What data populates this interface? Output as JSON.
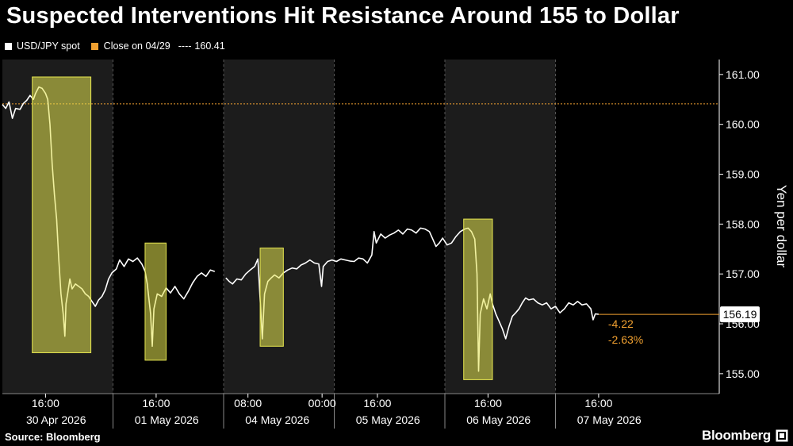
{
  "title": "Suspected Interventions Hit Resistance Around 155 to Dollar",
  "source": "Source: Bloomberg",
  "brand": "Bloomberg",
  "colors": {
    "background": "#000000",
    "shade": "#1c1c1c",
    "series": "#ffffff",
    "close_line": "#f0a030",
    "highlight": "#e6e650",
    "annotation": "#f0a030"
  },
  "icons": {
    "brand": "bloomberg-terminal-icon"
  },
  "chart_data": {
    "type": "line",
    "ylabel": "Yen per dollar",
    "ylim": [
      154.6,
      161.3
    ],
    "y_ticks": [
      "155.00",
      "156.00",
      "157.00",
      "158.00",
      "159.00",
      "160.00",
      "161.00"
    ],
    "grid": false,
    "legend_placement": "top-left",
    "legend": {
      "series_label": "USD/JPY spot",
      "close_label": "Close on 04/29",
      "close_dash": "----",
      "close_value": "160.41"
    },
    "close_reference": 160.41,
    "last_value": "156.19",
    "last_numeric": 156.19,
    "change_abs": "-4.22",
    "change_pct": "-2.63%",
    "x_ticks": [
      {
        "label": "16:00",
        "t": 0.39
      },
      {
        "label": "16:00",
        "t": 1.39
      },
      {
        "label": "08:00",
        "t": 2.22
      },
      {
        "label": "00:00",
        "t": 2.89
      },
      {
        "label": "16:00",
        "t": 3.39
      },
      {
        "label": "16:00",
        "t": 4.39
      },
      {
        "label": "16:00",
        "t": 5.39
      }
    ],
    "days": [
      {
        "label": "30 Apr 2026",
        "start": 0.0,
        "end": 1.0,
        "shaded": true
      },
      {
        "label": "01 May 2026",
        "start": 1.0,
        "end": 2.0,
        "shaded": false
      },
      {
        "label": "04 May 2026",
        "start": 2.0,
        "end": 3.0,
        "shaded": true
      },
      {
        "label": "05 May 2026",
        "start": 3.0,
        "end": 4.0,
        "shaded": false
      },
      {
        "label": "06 May 2026",
        "start": 4.0,
        "end": 5.0,
        "shaded": true
      },
      {
        "label": "07 May 2026",
        "start": 5.0,
        "end": 6.0,
        "shaded": false
      }
    ],
    "intervention_windows": [
      {
        "t0": 0.27,
        "t1": 0.8,
        "ymin": 155.42,
        "ymax": 160.95
      },
      {
        "t0": 1.29,
        "t1": 1.48,
        "ymin": 155.27,
        "ymax": 157.62
      },
      {
        "t0": 2.33,
        "t1": 2.54,
        "ymin": 155.55,
        "ymax": 157.52
      },
      {
        "t0": 4.17,
        "t1": 4.43,
        "ymin": 154.88,
        "ymax": 158.1
      }
    ],
    "series": [
      {
        "name": "USD/JPY spot",
        "segments": [
          [
            [
              0.0,
              160.4
            ],
            [
              0.03,
              160.32
            ],
            [
              0.06,
              160.45
            ],
            [
              0.09,
              160.12
            ],
            [
              0.12,
              160.32
            ],
            [
              0.16,
              160.3
            ],
            [
              0.19,
              160.42
            ],
            [
              0.22,
              160.48
            ],
            [
              0.25,
              160.58
            ],
            [
              0.28,
              160.5
            ],
            [
              0.3,
              160.62
            ],
            [
              0.33,
              160.75
            ],
            [
              0.36,
              160.72
            ],
            [
              0.39,
              160.62
            ],
            [
              0.41,
              160.5
            ],
            [
              0.43,
              160.0
            ],
            [
              0.45,
              159.2
            ],
            [
              0.47,
              158.6
            ],
            [
              0.49,
              158.1
            ],
            [
              0.51,
              157.3
            ],
            [
              0.53,
              156.6
            ],
            [
              0.55,
              156.2
            ],
            [
              0.565,
              155.75
            ],
            [
              0.575,
              156.4
            ],
            [
              0.59,
              156.6
            ],
            [
              0.61,
              156.9
            ],
            [
              0.63,
              156.7
            ],
            [
              0.66,
              156.8
            ],
            [
              0.69,
              156.75
            ],
            [
              0.72,
              156.7
            ],
            [
              0.75,
              156.6
            ],
            [
              0.78,
              156.55
            ],
            [
              0.81,
              156.45
            ],
            [
              0.84,
              156.35
            ],
            [
              0.87,
              156.48
            ],
            [
              0.9,
              156.55
            ],
            [
              0.93,
              156.68
            ],
            [
              0.96,
              156.9
            ],
            [
              0.99,
              157.02
            ],
            [
              1.03,
              157.1
            ],
            [
              1.06,
              157.28
            ],
            [
              1.1,
              157.15
            ],
            [
              1.14,
              157.3
            ],
            [
              1.18,
              157.25
            ],
            [
              1.22,
              157.32
            ],
            [
              1.26,
              157.2
            ],
            [
              1.29,
              157.05
            ],
            [
              1.31,
              156.8
            ],
            [
              1.34,
              156.2
            ],
            [
              1.355,
              155.55
            ],
            [
              1.37,
              156.3
            ],
            [
              1.4,
              156.6
            ],
            [
              1.44,
              156.55
            ],
            [
              1.48,
              156.72
            ],
            [
              1.52,
              156.62
            ],
            [
              1.56,
              156.75
            ],
            [
              1.6,
              156.6
            ],
            [
              1.64,
              156.5
            ],
            [
              1.68,
              156.65
            ],
            [
              1.72,
              156.82
            ],
            [
              1.76,
              156.95
            ],
            [
              1.8,
              157.02
            ],
            [
              1.84,
              156.95
            ],
            [
              1.88,
              157.08
            ],
            [
              1.92,
              157.05
            ]
          ],
          [
            [
              2.02,
              156.92
            ],
            [
              2.05,
              156.85
            ],
            [
              2.08,
              156.8
            ],
            [
              2.12,
              156.9
            ],
            [
              2.16,
              156.88
            ],
            [
              2.2,
              157.0
            ],
            [
              2.24,
              157.08
            ],
            [
              2.28,
              157.15
            ],
            [
              2.31,
              157.3
            ],
            [
              2.335,
              156.3
            ],
            [
              2.35,
              155.7
            ],
            [
              2.37,
              156.6
            ],
            [
              2.4,
              156.85
            ],
            [
              2.43,
              156.92
            ],
            [
              2.46,
              156.98
            ],
            [
              2.5,
              156.92
            ],
            [
              2.54,
              157.02
            ],
            [
              2.58,
              157.08
            ],
            [
              2.62,
              157.12
            ],
            [
              2.66,
              157.1
            ],
            [
              2.7,
              157.18
            ],
            [
              2.74,
              157.22
            ],
            [
              2.78,
              157.28
            ],
            [
              2.82,
              157.22
            ],
            [
              2.86,
              157.2
            ],
            [
              2.885,
              156.75
            ],
            [
              2.9,
              157.15
            ],
            [
              2.94,
              157.25
            ],
            [
              2.98,
              157.28
            ],
            [
              3.02,
              157.25
            ],
            [
              3.06,
              157.3
            ],
            [
              3.1,
              157.28
            ],
            [
              3.14,
              157.26
            ],
            [
              3.18,
              157.25
            ],
            [
              3.22,
              157.32
            ],
            [
              3.26,
              157.3
            ],
            [
              3.3,
              157.22
            ],
            [
              3.34,
              157.38
            ],
            [
              3.36,
              157.85
            ],
            [
              3.38,
              157.62
            ],
            [
              3.42,
              157.8
            ],
            [
              3.46,
              157.72
            ],
            [
              3.5,
              157.78
            ],
            [
              3.54,
              157.82
            ],
            [
              3.58,
              157.88
            ],
            [
              3.62,
              157.8
            ],
            [
              3.66,
              157.9
            ],
            [
              3.7,
              157.88
            ],
            [
              3.74,
              157.82
            ],
            [
              3.78,
              157.92
            ],
            [
              3.82,
              157.9
            ],
            [
              3.86,
              157.85
            ],
            [
              3.89,
              157.7
            ],
            [
              3.92,
              157.55
            ],
            [
              3.95,
              157.62
            ],
            [
              3.98,
              157.72
            ],
            [
              4.02,
              157.58
            ],
            [
              4.06,
              157.62
            ],
            [
              4.1,
              157.75
            ],
            [
              4.14,
              157.85
            ],
            [
              4.18,
              157.9
            ],
            [
              4.21,
              157.92
            ],
            [
              4.24,
              157.85
            ],
            [
              4.27,
              157.7
            ],
            [
              4.29,
              157.0
            ],
            [
              4.305,
              155.05
            ],
            [
              4.32,
              156.2
            ],
            [
              4.35,
              156.5
            ],
            [
              4.38,
              156.3
            ],
            [
              4.41,
              156.6
            ],
            [
              4.43,
              156.4
            ],
            [
              4.46,
              156.2
            ],
            [
              4.49,
              156.05
            ],
            [
              4.52,
              155.9
            ],
            [
              4.55,
              155.7
            ],
            [
              4.58,
              155.95
            ],
            [
              4.61,
              156.15
            ],
            [
              4.64,
              156.22
            ],
            [
              4.67,
              156.3
            ],
            [
              4.7,
              156.42
            ],
            [
              4.73,
              156.52
            ],
            [
              4.76,
              156.48
            ],
            [
              4.8,
              156.5
            ],
            [
              4.84,
              156.42
            ],
            [
              4.88,
              156.38
            ],
            [
              4.92,
              156.42
            ],
            [
              4.96,
              156.3
            ],
            [
              5.0,
              156.35
            ],
            [
              5.04,
              156.22
            ],
            [
              5.08,
              156.3
            ],
            [
              5.12,
              156.42
            ],
            [
              5.16,
              156.38
            ],
            [
              5.2,
              156.45
            ],
            [
              5.24,
              156.38
            ],
            [
              5.28,
              156.4
            ],
            [
              5.32,
              156.3
            ],
            [
              5.34,
              156.08
            ],
            [
              5.36,
              156.2
            ],
            [
              5.39,
              156.19
            ]
          ]
        ]
      }
    ]
  }
}
